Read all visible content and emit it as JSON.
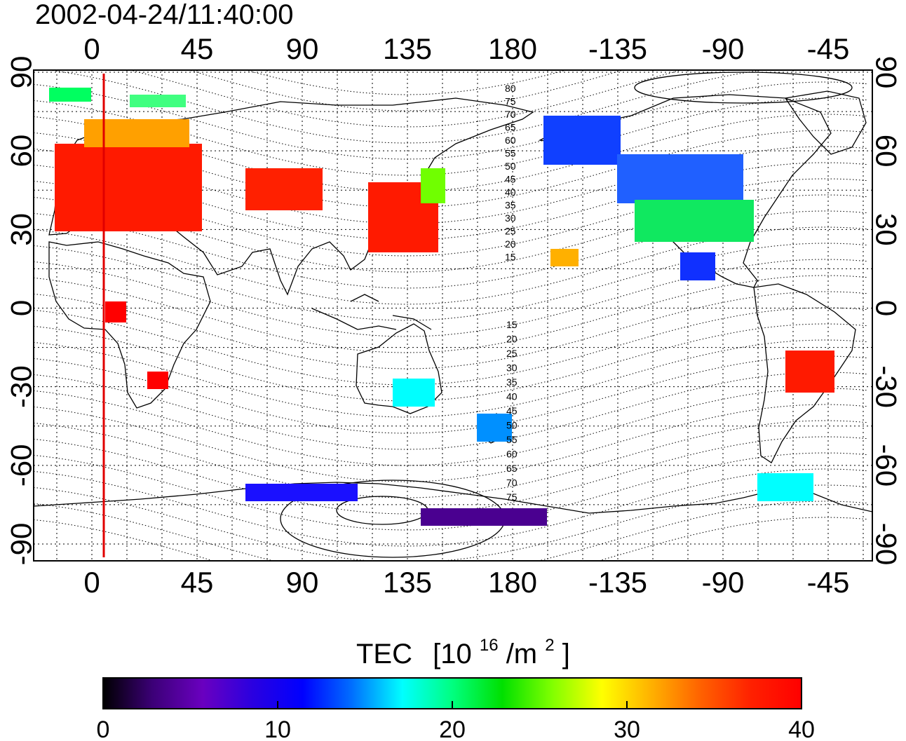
{
  "title": "2002-04-24/11:40:00",
  "top_lon_ticks": [
    "0",
    "45",
    "90",
    "135",
    "180",
    "-135",
    "-90",
    "-45"
  ],
  "bottom_lon_ticks": [
    "0",
    "45",
    "90",
    "135",
    "180",
    "-135",
    "-90",
    "-45"
  ],
  "left_lat_ticks": [
    "90",
    "60",
    "30",
    "0",
    "-30",
    "-60",
    "-90"
  ],
  "right_lat_ticks": [
    "90",
    "60",
    "30",
    "0",
    "-30",
    "-60",
    "-90"
  ],
  "contour_labels_north": [
    "80",
    "75",
    "70",
    "65",
    "60",
    "55",
    "50",
    "45",
    "40",
    "35",
    "30",
    "25",
    "20",
    "15"
  ],
  "contour_labels_south": [
    "15",
    "20",
    "25",
    "30",
    "35",
    "40",
    "45",
    "50",
    "55",
    "60",
    "65",
    "70",
    "75"
  ],
  "colorbar": {
    "title": "TEC",
    "unit_prefix": "[10",
    "unit_exp": "16",
    "unit_mid": "/m",
    "unit_exp2": "2",
    "unit_suffix": "]",
    "min": 0,
    "max": 40,
    "ticks": [
      "0",
      "10",
      "20",
      "30",
      "40"
    ],
    "colors": [
      "#000000",
      "#3c0078",
      "#6a00c0",
      "#2a00e0",
      "#0000ff",
      "#0070ff",
      "#00ffff",
      "#00ff80",
      "#00e000",
      "#80ff00",
      "#ffff00",
      "#ffb000",
      "#ff6000",
      "#ff2000",
      "#ff0000"
    ]
  },
  "colors": {
    "sun_line": "#e00000",
    "map_line": "#000000"
  }
}
